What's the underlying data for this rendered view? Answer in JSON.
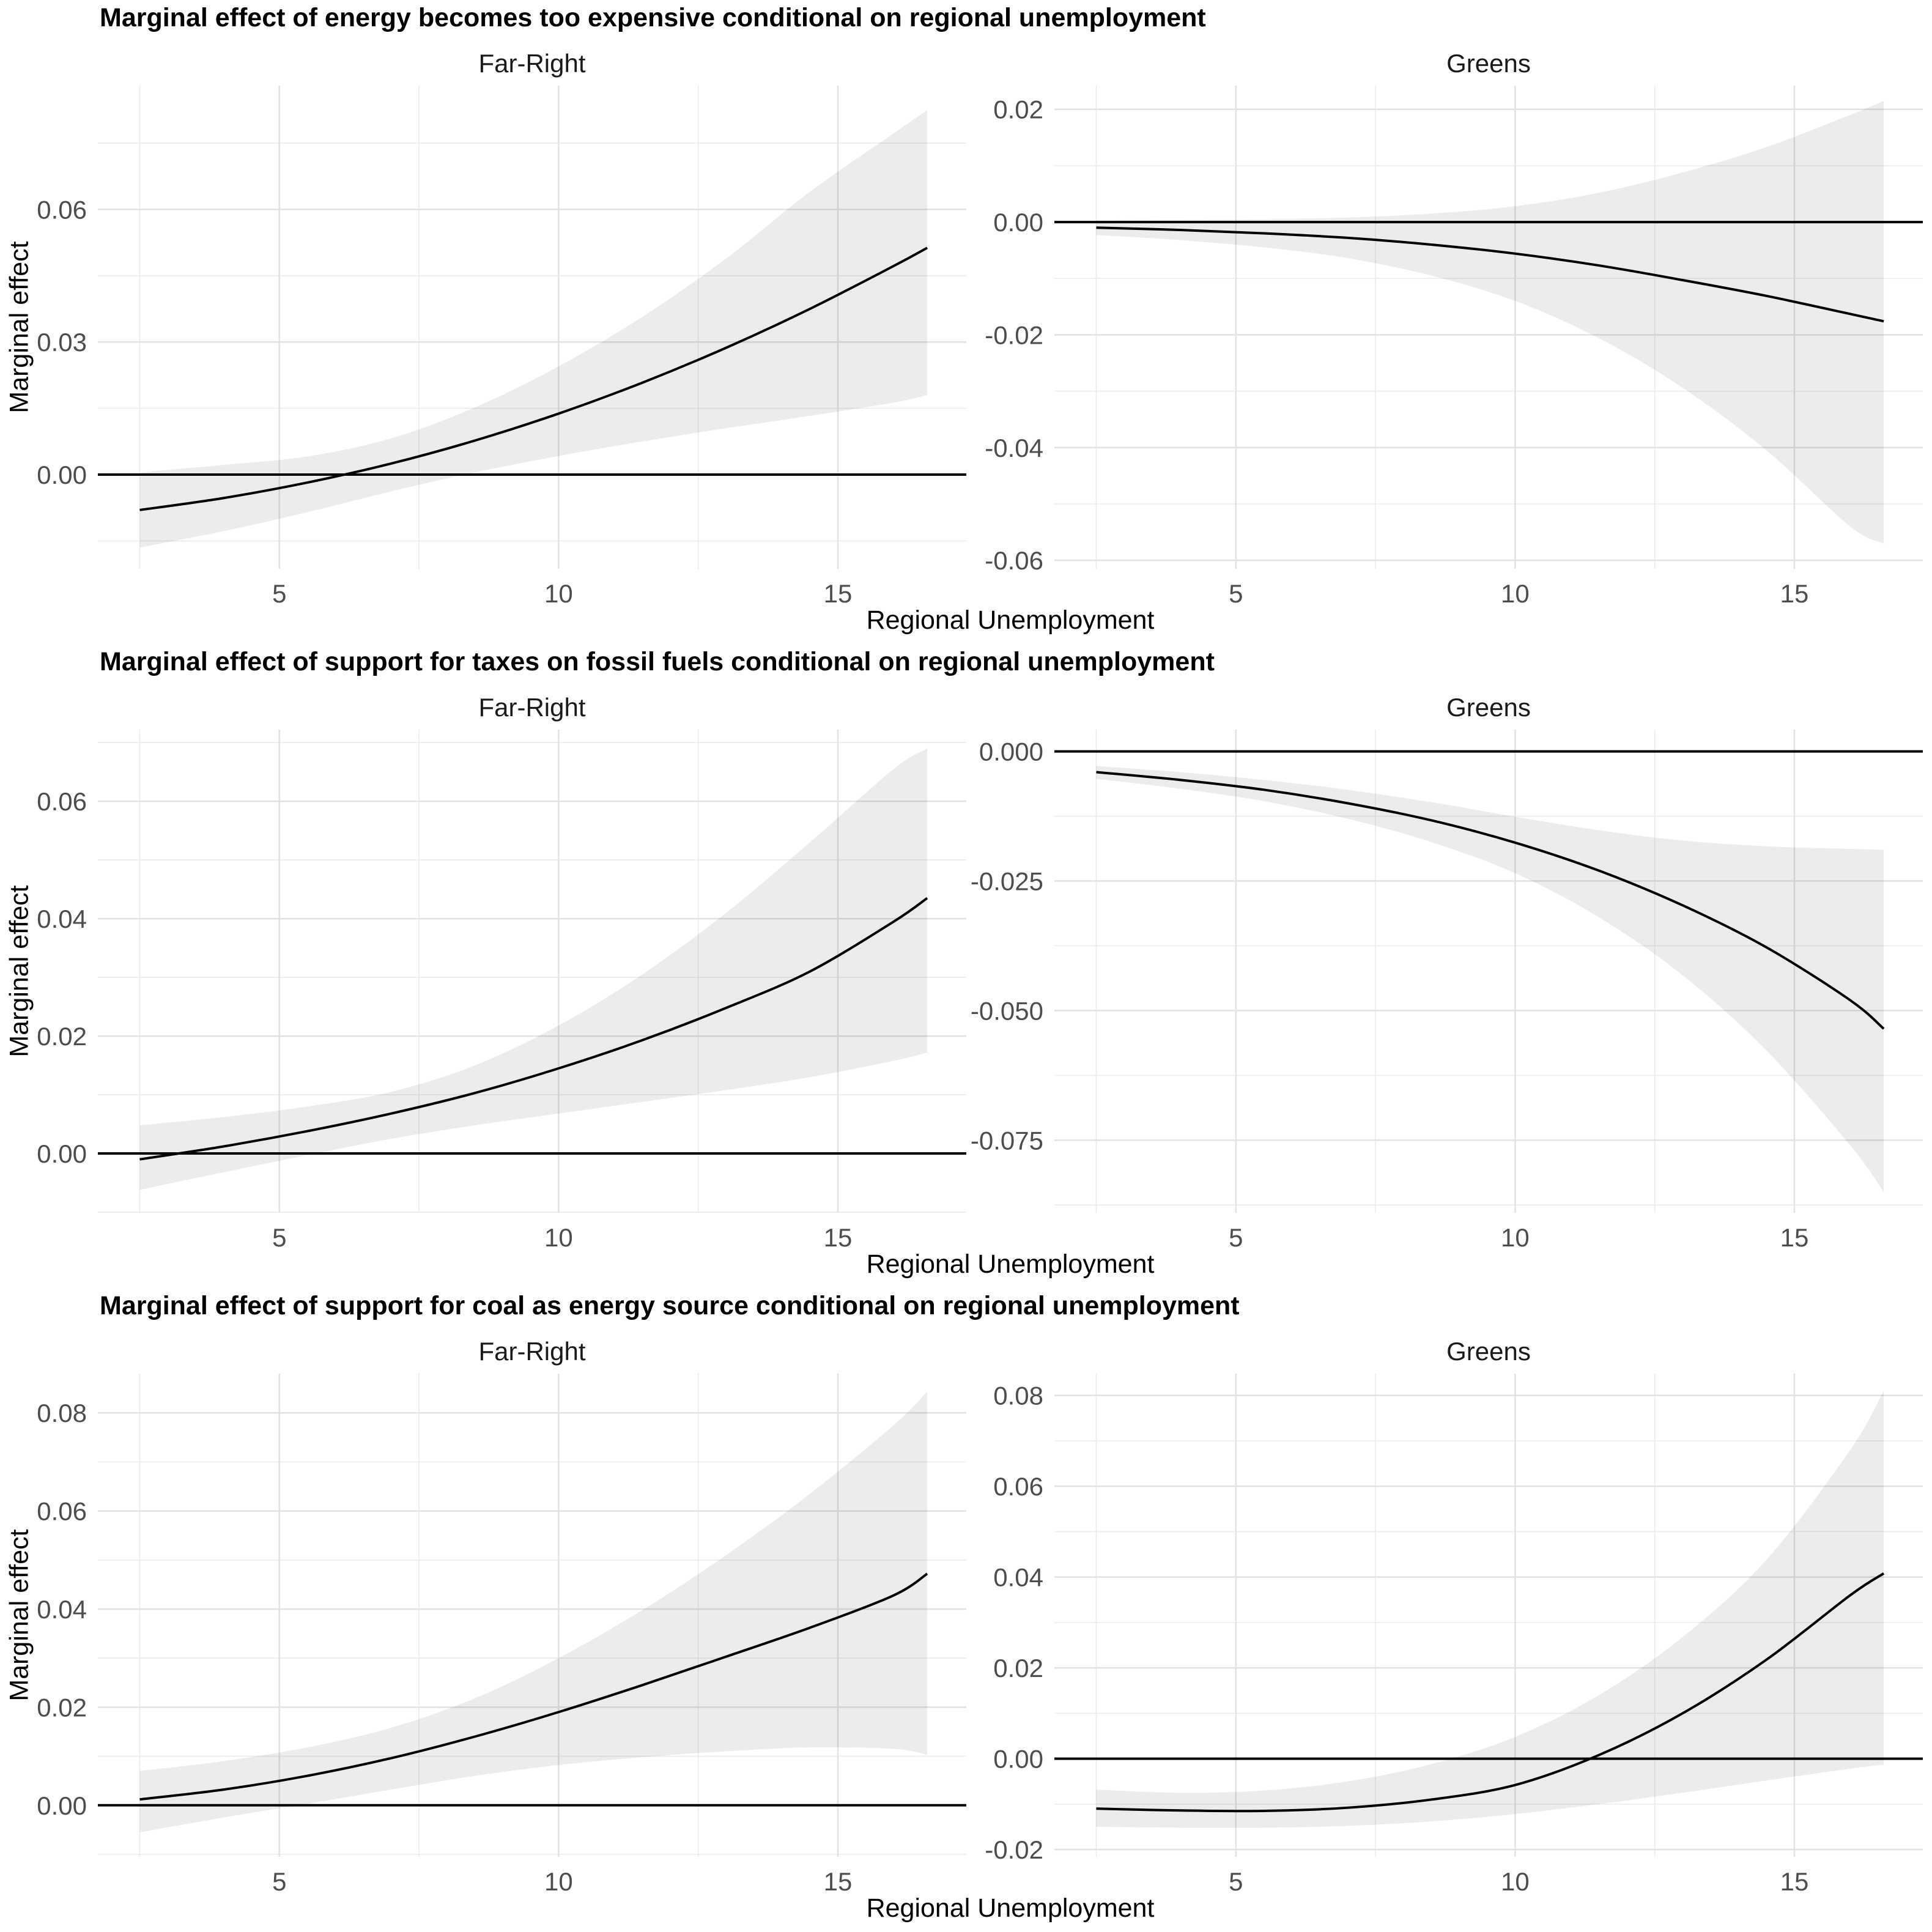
{
  "figure": {
    "xlabel": "Regional Unemployment",
    "ylabel": "Marginal effect",
    "colors": {
      "background": "#FFFFFF",
      "mean_line": "#000000",
      "zero_line": "#000000",
      "ribbon": "rgba(0,0,0,0.075)",
      "grid_major": "#E2E2E2",
      "grid_minor": "#EBEBEB",
      "tick_text": "#4D4D4D",
      "title_text": "#000000",
      "facet_text": "#1A1A1A"
    }
  },
  "chart_data": [
    {
      "type": "line",
      "title": "Marginal effect of energy becomes too expensive conditional on regional unemployment",
      "xlabel": "Regional Unemployment",
      "ylabel": "Marginal effect",
      "xlim": [
        1.75,
        17.3
      ],
      "xticks": [
        {
          "v": 5,
          "label": "5"
        },
        {
          "v": 10,
          "label": "10"
        },
        {
          "v": 15,
          "label": "15"
        }
      ],
      "xminor": [
        2.5,
        7.5,
        12.5
      ],
      "legend": "none",
      "facets": [
        {
          "label": "Far-Right",
          "ylim": [
            -0.0213,
            0.088
          ],
          "yticks": [
            {
              "v": 0.0,
              "label": "0.00"
            },
            {
              "v": 0.03,
              "label": "0.03"
            },
            {
              "v": 0.06,
              "label": "0.06"
            }
          ],
          "yminor": [
            -0.015,
            0.015,
            0.045,
            0.075
          ],
          "zero_line": 0,
          "x": [
            2.5,
            4,
            5.5,
            7,
            8.5,
            10,
            11.5,
            13,
            14.5,
            16,
            16.6
          ],
          "mean": [
            -0.008,
            -0.0053,
            -0.0018,
            0.0025,
            0.0077,
            0.0138,
            0.0208,
            0.0287,
            0.0375,
            0.0472,
            0.0513
          ],
          "lower": [
            -0.0165,
            -0.0128,
            -0.0085,
            -0.0038,
            0.0005,
            0.0042,
            0.0075,
            0.0105,
            0.0133,
            0.0163,
            0.018
          ],
          "upper": [
            0.0005,
            0.0022,
            0.0041,
            0.0082,
            0.0152,
            0.0245,
            0.0357,
            0.0489,
            0.064,
            0.0772,
            0.0825
          ]
        },
        {
          "label": "Greens",
          "ylim": [
            -0.0615,
            0.0242
          ],
          "yticks": [
            {
              "v": 0.02,
              "label": "0.02"
            },
            {
              "v": 0.0,
              "label": "0.00"
            },
            {
              "v": -0.02,
              "label": "-0.02"
            },
            {
              "v": -0.04,
              "label": "-0.04"
            },
            {
              "v": -0.06,
              "label": "-0.06"
            }
          ],
          "yminor": [
            0.01,
            -0.01,
            -0.03,
            -0.05
          ],
          "zero_line": 0,
          "x": [
            2.5,
            4,
            5.5,
            7,
            8.5,
            10,
            11.5,
            13,
            14.5,
            16,
            16.6
          ],
          "mean": [
            -0.001,
            -0.0014,
            -0.002,
            -0.0028,
            -0.004,
            -0.0056,
            -0.0077,
            -0.0103,
            -0.0131,
            -0.0163,
            -0.0176
          ],
          "lower": [
            -0.0023,
            -0.0032,
            -0.0045,
            -0.0064,
            -0.0095,
            -0.014,
            -0.0206,
            -0.0294,
            -0.0405,
            -0.054,
            -0.057
          ],
          "upper": [
            0.0003,
            0.0004,
            0.0005,
            0.0008,
            0.0015,
            0.0028,
            0.0052,
            0.0088,
            0.0133,
            0.019,
            0.0215
          ]
        }
      ]
    },
    {
      "type": "line",
      "title": "Marginal effect of support for taxes on fossil fuels conditional on regional unemployment",
      "xlabel": "Regional Unemployment",
      "ylabel": "Marginal effect",
      "xlim": [
        1.75,
        17.3
      ],
      "xticks": [
        {
          "v": 5,
          "label": "5"
        },
        {
          "v": 10,
          "label": "10"
        },
        {
          "v": 15,
          "label": "15"
        }
      ],
      "xminor": [
        2.5,
        7.5,
        12.5
      ],
      "legend": "none",
      "facets": [
        {
          "label": "Far-Right",
          "ylim": [
            -0.0101,
            0.0722
          ],
          "yticks": [
            {
              "v": 0.0,
              "label": "0.00"
            },
            {
              "v": 0.02,
              "label": "0.02"
            },
            {
              "v": 0.04,
              "label": "0.04"
            },
            {
              "v": 0.06,
              "label": "0.06"
            }
          ],
          "yminor": [
            -0.01,
            0.01,
            0.03,
            0.05,
            0.07
          ],
          "zero_line": 0,
          "x": [
            2.5,
            4,
            5.5,
            7,
            8.5,
            10,
            11.5,
            13,
            14.5,
            16,
            16.6
          ],
          "mean": [
            -0.001,
            0.0012,
            0.0038,
            0.0068,
            0.0103,
            0.0145,
            0.0193,
            0.0248,
            0.031,
            0.0395,
            0.0435
          ],
          "lower": [
            -0.0062,
            -0.0032,
            -0.0003,
            0.0025,
            0.0048,
            0.0068,
            0.0088,
            0.0108,
            0.013,
            0.0158,
            0.0172
          ],
          "upper": [
            0.0048,
            0.0062,
            0.008,
            0.0105,
            0.015,
            0.0218,
            0.0305,
            0.041,
            0.053,
            0.0655,
            0.069
          ]
        },
        {
          "label": "Greens",
          "ylim": [
            -0.089,
            0.0042
          ],
          "yticks": [
            {
              "v": 0.0,
              "label": "0.000"
            },
            {
              "v": -0.025,
              "label": "-0.025"
            },
            {
              "v": -0.05,
              "label": "-0.050"
            },
            {
              "v": -0.075,
              "label": "-0.075"
            }
          ],
          "yminor": [
            -0.0125,
            -0.0375,
            -0.0625,
            -0.0875
          ],
          "zero_line": 0,
          "x": [
            2.5,
            4,
            5.5,
            7,
            8.5,
            10,
            11.5,
            13,
            14.5,
            16,
            16.6
          ],
          "mean": [
            -0.004,
            -0.0055,
            -0.0074,
            -0.01,
            -0.0133,
            -0.0176,
            -0.023,
            -0.0297,
            -0.0378,
            -0.048,
            -0.0535
          ],
          "lower": [
            -0.0053,
            -0.0072,
            -0.0096,
            -0.013,
            -0.0175,
            -0.0235,
            -0.032,
            -0.0432,
            -0.0577,
            -0.076,
            -0.085
          ],
          "upper": [
            -0.0028,
            -0.004,
            -0.0055,
            -0.0074,
            -0.0098,
            -0.0126,
            -0.0152,
            -0.0172,
            -0.0183,
            -0.0188,
            -0.019
          ]
        }
      ]
    },
    {
      "type": "line",
      "title": "Marginal effect of support for coal as energy source conditional on regional unemployment",
      "xlabel": "Regional Unemployment",
      "ylabel": "Marginal effect",
      "xlim": [
        1.75,
        17.3
      ],
      "xticks": [
        {
          "v": 5,
          "label": "5"
        },
        {
          "v": 10,
          "label": "10"
        },
        {
          "v": 15,
          "label": "15"
        }
      ],
      "xminor": [
        2.5,
        7.5,
        12.5
      ],
      "legend": "none",
      "facets": [
        {
          "label": "Far-Right",
          "ylim": [
            -0.0105,
            0.088
          ],
          "yticks": [
            {
              "v": 0.0,
              "label": "0.00"
            },
            {
              "v": 0.02,
              "label": "0.02"
            },
            {
              "v": 0.04,
              "label": "0.04"
            },
            {
              "v": 0.06,
              "label": "0.06"
            },
            {
              "v": 0.08,
              "label": "0.08"
            }
          ],
          "yminor": [
            -0.01,
            0.01,
            0.03,
            0.05,
            0.07
          ],
          "zero_line": 0,
          "x": [
            2.5,
            4,
            5.5,
            7,
            8.5,
            10,
            11.5,
            13,
            14.5,
            16,
            16.6
          ],
          "mean": [
            0.0012,
            0.0032,
            0.006,
            0.0096,
            0.014,
            0.019,
            0.0245,
            0.0303,
            0.0362,
            0.0428,
            0.0472
          ],
          "lower": [
            -0.0055,
            -0.0025,
            0.0003,
            0.0032,
            0.006,
            0.0082,
            0.0098,
            0.011,
            0.0118,
            0.0115,
            0.0103
          ],
          "upper": [
            0.007,
            0.009,
            0.0118,
            0.0158,
            0.0218,
            0.03,
            0.0398,
            0.051,
            0.0635,
            0.0775,
            0.0843
          ]
        },
        {
          "label": "Greens",
          "ylim": [
            -0.0216,
            0.0848
          ],
          "yticks": [
            {
              "v": -0.02,
              "label": "-0.02"
            },
            {
              "v": 0.0,
              "label": "0.00"
            },
            {
              "v": 0.02,
              "label": "0.02"
            },
            {
              "v": 0.04,
              "label": "0.04"
            },
            {
              "v": 0.06,
              "label": "0.06"
            },
            {
              "v": 0.08,
              "label": "0.08"
            }
          ],
          "yminor": [
            -0.01,
            0.01,
            0.03,
            0.05,
            0.07
          ],
          "zero_line": 0,
          "x": [
            2.5,
            4,
            5.5,
            7,
            8.5,
            10,
            11.5,
            13,
            14.5,
            16,
            16.6
          ],
          "mean": [
            -0.011,
            -0.0114,
            -0.0115,
            -0.0108,
            -0.009,
            -0.0058,
            0.0008,
            0.01,
            0.0218,
            0.036,
            0.0408
          ],
          "lower": [
            -0.015,
            -0.0152,
            -0.0152,
            -0.0148,
            -0.0138,
            -0.0122,
            -0.01,
            -0.0075,
            -0.0048,
            -0.0022,
            -0.0013
          ],
          "upper": [
            -0.0068,
            -0.0075,
            -0.007,
            -0.005,
            -0.0012,
            0.0048,
            0.014,
            0.0268,
            0.0438,
            0.068,
            0.081
          ]
        }
      ]
    }
  ]
}
